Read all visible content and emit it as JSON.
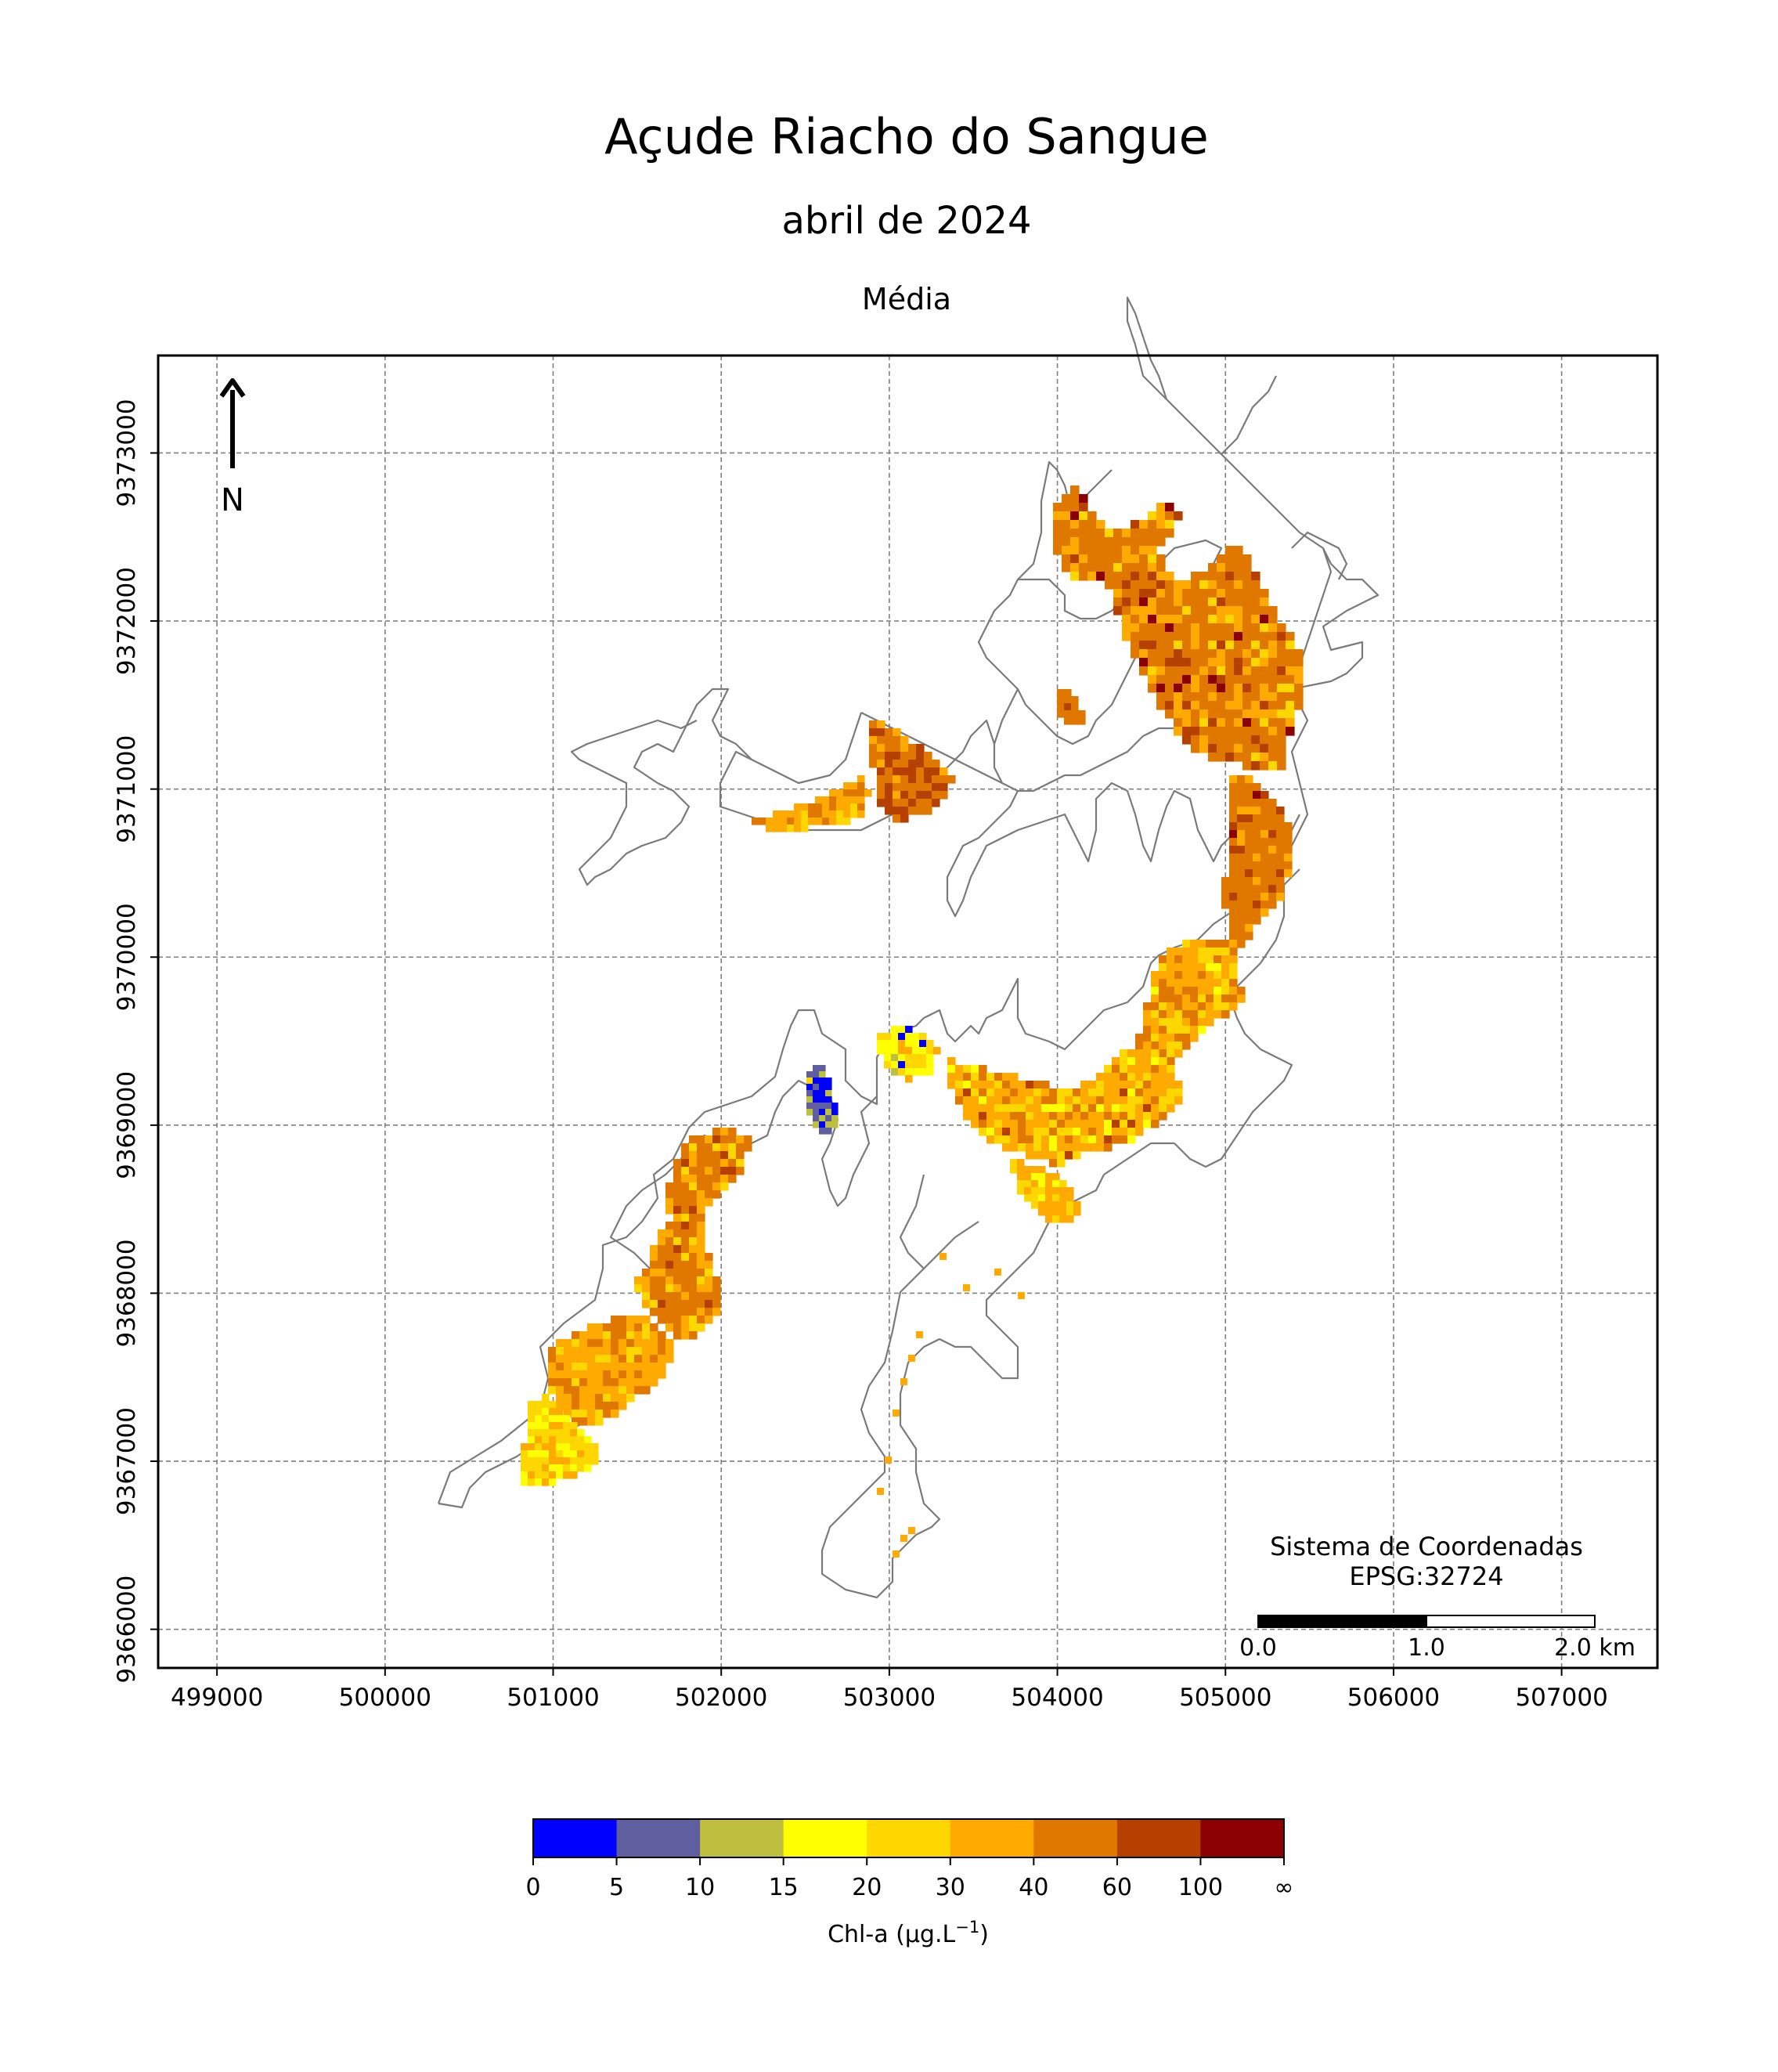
{
  "title": "Açude Riacho do Sangue",
  "subtitle": "abril de 2024",
  "statistic": "Média",
  "north_label": "N",
  "crs": {
    "line1": "Sistema de Coordenadas",
    "line2": "EPSG:32724"
  },
  "scalebar": {
    "labels": [
      "0.0",
      "1.0",
      "2.0 km"
    ]
  },
  "axes": {
    "xlim": [
      498650,
      507570
    ],
    "ylim": [
      9365770,
      9373580
    ],
    "x_ticks": [
      {
        "value": 499000,
        "label": "499000"
      },
      {
        "value": 500000,
        "label": "500000"
      },
      {
        "value": 501000,
        "label": "501000"
      },
      {
        "value": 502000,
        "label": "502000"
      },
      {
        "value": 503000,
        "label": "503000"
      },
      {
        "value": 504000,
        "label": "504000"
      },
      {
        "value": 505000,
        "label": "505000"
      },
      {
        "value": 506000,
        "label": "506000"
      },
      {
        "value": 507000,
        "label": "507000"
      }
    ],
    "y_ticks": [
      {
        "value": 9366000,
        "label": "9366000"
      },
      {
        "value": 9367000,
        "label": "9367000"
      },
      {
        "value": 9368000,
        "label": "9368000"
      },
      {
        "value": 9369000,
        "label": "9369000"
      },
      {
        "value": 9370000,
        "label": "9370000"
      },
      {
        "value": 9371000,
        "label": "9371000"
      },
      {
        "value": 9372000,
        "label": "9372000"
      },
      {
        "value": 9373000,
        "label": "9373000"
      }
    ],
    "grid": true
  },
  "colorbar": {
    "label": "Chl-a (μg.L",
    "label_sup": "−1",
    "label_end": ")",
    "classes": [
      {
        "from": "0",
        "to": "5",
        "color": "#0000ff"
      },
      {
        "from": "5",
        "to": "10",
        "color": "#5f5f9f"
      },
      {
        "from": "10",
        "to": "15",
        "color": "#bfbf3f"
      },
      {
        "from": "15",
        "to": "20",
        "color": "#ffff00"
      },
      {
        "from": "20",
        "to": "30",
        "color": "#ffd700"
      },
      {
        "from": "30",
        "to": "40",
        "color": "#ffaa00"
      },
      {
        "from": "40",
        "to": "60",
        "color": "#e07800"
      },
      {
        "from": "60",
        "to": "100",
        "color": "#b54000"
      },
      {
        "from": "100",
        "to": "∞",
        "color": "#8b0000"
      }
    ],
    "tick_labels": [
      "0",
      "5",
      "10",
      "15",
      "20",
      "30",
      "40",
      "60",
      "100",
      "∞"
    ]
  }
}
